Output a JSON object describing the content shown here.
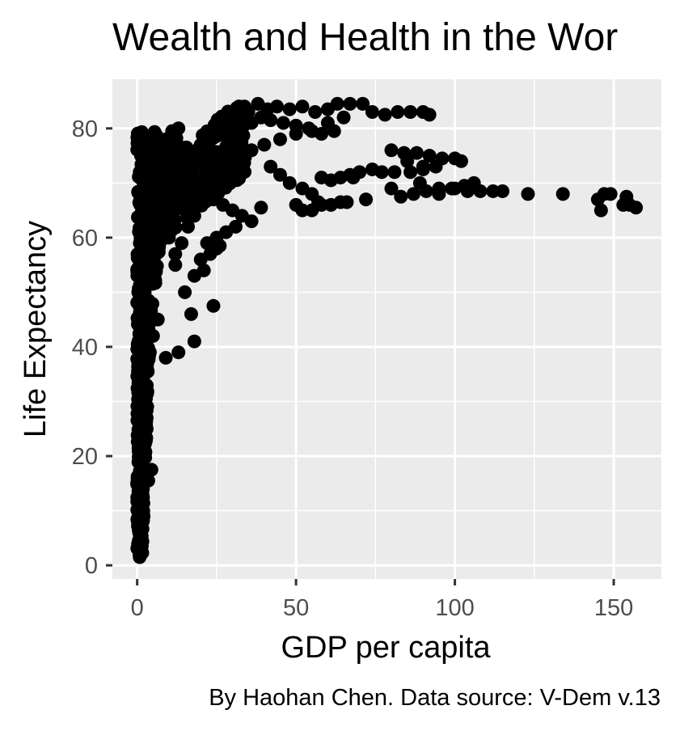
{
  "chart_data": {
    "type": "scatter",
    "title": "Wealth and Health in the Wor",
    "xlabel": "GDP per capita",
    "ylabel": "Life Expectancy",
    "caption": "By Haohan Chen. Data source: V-Dem v.13",
    "xlim": [
      -7.8,
      165
    ],
    "ylim": [
      -2.5,
      89
    ],
    "x_ticks": [
      0,
      50,
      100,
      150
    ],
    "x_tick_labels": [
      "0",
      "50",
      "100",
      "150"
    ],
    "y_ticks": [
      0,
      20,
      40,
      60,
      80
    ],
    "y_tick_labels": [
      "0",
      "20",
      "40",
      "60",
      "80"
    ],
    "grid": true,
    "legend": "none",
    "point_color": "#000000",
    "panel_background": "#ebebeb",
    "gridline_color": "#ffffff",
    "points": [
      [
        0.8,
        1.5
      ],
      [
        0.5,
        4.5
      ],
      [
        1.0,
        8.0
      ],
      [
        1.5,
        12.0
      ],
      [
        0.7,
        16.0
      ],
      [
        1.2,
        20.0
      ],
      [
        2.0,
        23.0
      ],
      [
        3.0,
        27.0
      ],
      [
        4.5,
        17.5
      ],
      [
        3.5,
        15.5
      ],
      [
        0.6,
        30.0
      ],
      [
        1.5,
        33.0
      ],
      [
        2.5,
        36.0
      ],
      [
        4.0,
        39.0
      ],
      [
        5.0,
        42.0
      ],
      [
        1.0,
        46.0
      ],
      [
        2.0,
        50.0
      ],
      [
        3.0,
        54.0
      ],
      [
        1.5,
        58.0
      ],
      [
        2.5,
        62.0
      ],
      [
        1.0,
        66.0
      ],
      [
        2.0,
        70.0
      ],
      [
        0.8,
        72.0
      ],
      [
        1.2,
        75.0
      ],
      [
        3.0,
        77.0
      ],
      [
        5.0,
        74.0
      ],
      [
        7.0,
        76.0
      ],
      [
        9.0,
        78.0
      ],
      [
        11.0,
        79.5
      ],
      [
        13.0,
        80.0
      ],
      [
        6.0,
        70.0
      ],
      [
        8.0,
        65.0
      ],
      [
        10.0,
        60.0
      ],
      [
        12.0,
        55.0
      ],
      [
        15.0,
        50.0
      ],
      [
        17.0,
        46.0
      ],
      [
        18.0,
        41.0
      ],
      [
        13.0,
        39.0
      ],
      [
        9.0,
        38.0
      ],
      [
        6.5,
        45.0
      ],
      [
        14.0,
        72.0
      ],
      [
        17.0,
        75.0
      ],
      [
        20.0,
        77.0
      ],
      [
        23.0,
        79.0
      ],
      [
        26.0,
        80.0
      ],
      [
        29.0,
        81.0
      ],
      [
        32.0,
        82.0
      ],
      [
        35.0,
        83.0
      ],
      [
        38.0,
        84.5
      ],
      [
        41.0,
        83.5
      ],
      [
        44.0,
        84.0
      ],
      [
        48.0,
        83.5
      ],
      [
        52.0,
        84.0
      ],
      [
        56.0,
        83.0
      ],
      [
        60.0,
        83.5
      ],
      [
        63.0,
        84.5
      ],
      [
        67.0,
        84.5
      ],
      [
        71.0,
        84.5
      ],
      [
        74.0,
        83.0
      ],
      [
        78.0,
        82.5
      ],
      [
        82.0,
        83.0
      ],
      [
        86.0,
        83.0
      ],
      [
        90.0,
        83.0
      ],
      [
        92.0,
        82.5
      ],
      [
        65.0,
        82.0
      ],
      [
        60.0,
        81.0
      ],
      [
        55.0,
        79.5
      ],
      [
        50.0,
        79.0
      ],
      [
        45.0,
        78.0
      ],
      [
        40.0,
        77.0
      ],
      [
        36.0,
        76.0
      ],
      [
        32.0,
        74.0
      ],
      [
        28.0,
        72.0
      ],
      [
        25.0,
        70.0
      ],
      [
        22.0,
        68.0
      ],
      [
        20.0,
        66.0
      ],
      [
        18.0,
        64.0
      ],
      [
        16.0,
        62.0
      ],
      [
        14.0,
        59.0
      ],
      [
        12.0,
        57.0
      ],
      [
        16.0,
        66.0
      ],
      [
        19.0,
        68.0
      ],
      [
        22.0,
        69.0
      ],
      [
        24.0,
        67.0
      ],
      [
        27.0,
        66.0
      ],
      [
        30.0,
        65.0
      ],
      [
        33.0,
        64.0
      ],
      [
        36.0,
        63.0
      ],
      [
        39.0,
        65.5
      ],
      [
        31.0,
        62.0
      ],
      [
        28.0,
        61.0
      ],
      [
        25.0,
        60.0
      ],
      [
        22.0,
        59.0
      ],
      [
        24.0,
        47.5
      ],
      [
        21.0,
        54.0
      ],
      [
        18.0,
        53.0
      ],
      [
        25.0,
        58.0
      ],
      [
        20.0,
        56.0
      ],
      [
        23.0,
        57.0
      ],
      [
        26.0,
        58.5
      ],
      [
        42.0,
        73.0
      ],
      [
        45.0,
        71.5
      ],
      [
        48.0,
        70.0
      ],
      [
        52.0,
        69.0
      ],
      [
        55.0,
        68.0
      ],
      [
        58.0,
        71.0
      ],
      [
        61.0,
        70.5
      ],
      [
        64.0,
        71.0
      ],
      [
        67.0,
        71.5
      ],
      [
        70.0,
        72.0
      ],
      [
        74.0,
        72.5
      ],
      [
        77.0,
        72.0
      ],
      [
        81.0,
        72.0
      ],
      [
        86.0,
        72.0
      ],
      [
        90.0,
        72.5
      ],
      [
        89.0,
        70.0
      ],
      [
        95.0,
        69.0
      ],
      [
        99.0,
        69.0
      ],
      [
        103.0,
        69.5
      ],
      [
        106.0,
        70.0
      ],
      [
        80.0,
        69.0
      ],
      [
        83.0,
        67.5
      ],
      [
        87.0,
        68.0
      ],
      [
        91.0,
        68.5
      ],
      [
        95.0,
        68.0
      ],
      [
        100.0,
        69.0
      ],
      [
        104.0,
        68.5
      ],
      [
        108.0,
        68.5
      ],
      [
        112.0,
        68.5
      ],
      [
        115.0,
        68.5
      ],
      [
        123.0,
        68.0
      ],
      [
        134.0,
        68.0
      ],
      [
        145.0,
        67.0
      ],
      [
        147.0,
        68.0
      ],
      [
        149.0,
        68.0
      ],
      [
        146.0,
        65.0
      ],
      [
        153.0,
        66.0
      ],
      [
        155.0,
        66.0
      ],
      [
        157.0,
        65.5
      ],
      [
        154.0,
        67.5
      ],
      [
        80.0,
        76.0
      ],
      [
        84.0,
        75.5
      ],
      [
        88.0,
        75.5
      ],
      [
        92.0,
        75.0
      ],
      [
        96.0,
        74.5
      ],
      [
        100.0,
        74.5
      ],
      [
        102.0,
        74.0
      ],
      [
        85.0,
        74.0
      ],
      [
        90.0,
        73.0
      ],
      [
        94.0,
        73.0
      ],
      [
        50.0,
        66.0
      ],
      [
        52.0,
        65.0
      ],
      [
        55.0,
        65.0
      ],
      [
        58.0,
        66.0
      ],
      [
        61.0,
        66.0
      ],
      [
        64.0,
        66.5
      ],
      [
        66.0,
        66.5
      ],
      [
        72.0,
        67.0
      ],
      [
        68.0,
        71.0
      ],
      [
        57.0,
        66.5
      ],
      [
        30.0,
        78.0
      ],
      [
        33.0,
        80.0
      ],
      [
        36.0,
        81.0
      ],
      [
        39.0,
        82.0
      ],
      [
        42.0,
        81.5
      ],
      [
        46.0,
        81.0
      ],
      [
        50.0,
        80.5
      ],
      [
        54.0,
        80.0
      ],
      [
        58.0,
        79.0
      ],
      [
        62.0,
        79.5
      ]
    ]
  }
}
